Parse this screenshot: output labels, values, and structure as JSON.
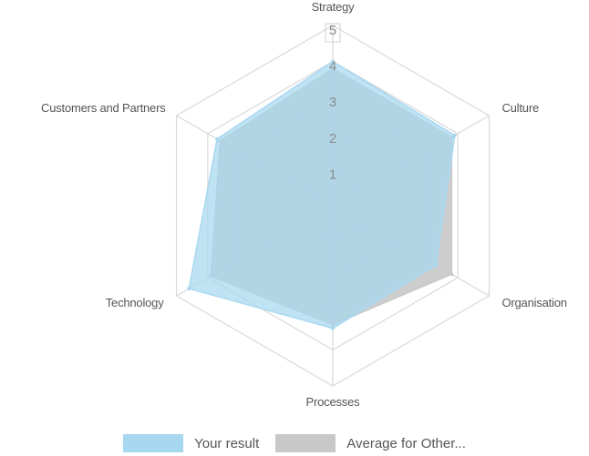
{
  "chart_data": {
    "type": "radar",
    "axes": [
      "Strategy",
      "Culture",
      "Organisation",
      "Processes",
      "Technology",
      "Customers and Partners"
    ],
    "rlim": [
      0,
      5
    ],
    "ticks": [
      "1",
      "2",
      "3",
      "4",
      "5"
    ],
    "grid": true,
    "legend_position": "bottom",
    "series": [
      {
        "name": "Your result",
        "values": [
          4.0,
          3.9,
          3.3,
          3.4,
          4.6,
          3.7
        ],
        "color": "#a8d8f0"
      },
      {
        "name": "Average for Other...",
        "values": [
          3.8,
          3.8,
          3.8,
          3.3,
          3.9,
          3.6
        ],
        "color": "#c8c8c8"
      }
    ]
  }
}
